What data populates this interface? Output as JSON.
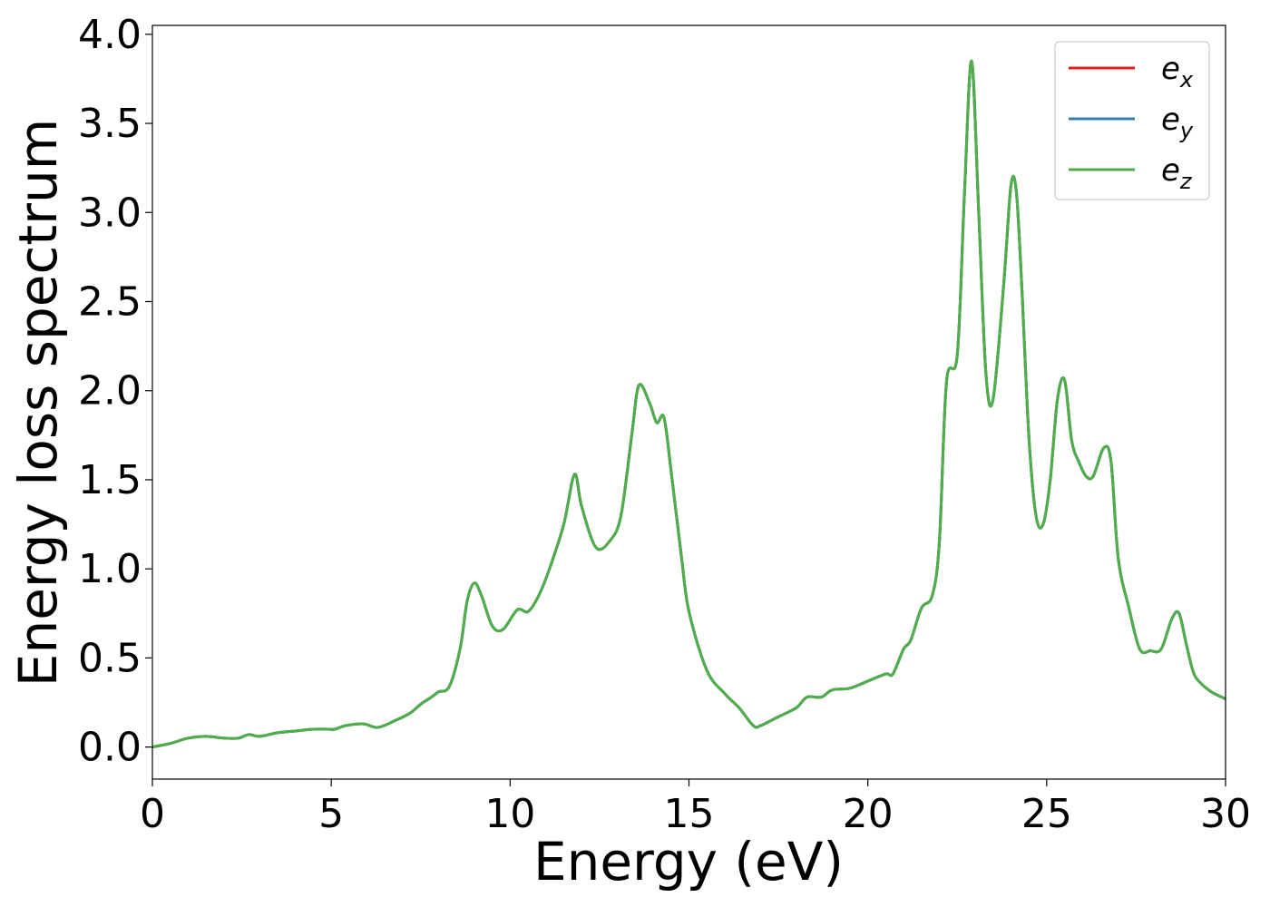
{
  "chart_data": {
    "type": "line",
    "title": "",
    "xlabel": "Energy (eV)",
    "ylabel": "Energy loss spectrum",
    "xlim": [
      0,
      30
    ],
    "ylim": [
      -0.18,
      4.05
    ],
    "xticks": [
      0,
      5,
      10,
      15,
      20,
      25,
      30
    ],
    "yticks": [
      0.0,
      0.5,
      1.0,
      1.5,
      2.0,
      2.5,
      3.0,
      3.5,
      4.0
    ],
    "xtick_labels": [
      "0",
      "5",
      "10",
      "15",
      "20",
      "25",
      "30"
    ],
    "ytick_labels": [
      "0.0",
      "0.5",
      "1.0",
      "1.5",
      "2.0",
      "2.5",
      "3.0",
      "3.5",
      "4.0"
    ],
    "grid": false,
    "legend_position": "top-right",
    "series": [
      {
        "name": "e_x",
        "label_base": "e",
        "label_sub": "x",
        "color": "#e41a1c"
      },
      {
        "name": "e_y",
        "label_base": "e",
        "label_sub": "y",
        "color": "#377eb8"
      },
      {
        "name": "e_z",
        "label_base": "e",
        "label_sub": "z",
        "color": "#4daf4a"
      }
    ],
    "x": [
      0.0,
      0.5,
      1.0,
      1.5,
      2.0,
      2.4,
      2.7,
      3.0,
      3.5,
      4.0,
      4.5,
      4.9,
      5.1,
      5.4,
      5.9,
      6.3,
      6.8,
      7.2,
      7.5,
      7.8,
      8.0,
      8.3,
      8.6,
      8.8,
      9.0,
      9.2,
      9.5,
      9.8,
      10.2,
      10.5,
      10.8,
      11.1,
      11.5,
      11.8,
      12.0,
      12.4,
      12.8,
      13.1,
      13.4,
      13.6,
      13.9,
      14.1,
      14.3,
      14.5,
      14.8,
      15.0,
      15.5,
      16.0,
      16.4,
      16.8,
      17.0,
      17.5,
      18.0,
      18.3,
      18.7,
      19.0,
      19.5,
      20.0,
      20.5,
      20.7,
      21.0,
      21.2,
      21.5,
      21.8,
      22.0,
      22.2,
      22.5,
      22.7,
      22.9,
      23.1,
      23.3,
      23.5,
      23.8,
      24.0,
      24.15,
      24.3,
      24.5,
      24.7,
      24.9,
      25.1,
      25.3,
      25.5,
      25.7,
      25.9,
      26.1,
      26.3,
      26.6,
      26.8,
      27.0,
      27.3,
      27.6,
      27.9,
      28.2,
      28.5,
      28.7,
      28.9,
      29.1,
      29.3,
      29.6,
      30.0
    ],
    "y": [
      0.0,
      0.02,
      0.05,
      0.06,
      0.05,
      0.05,
      0.07,
      0.06,
      0.08,
      0.09,
      0.1,
      0.1,
      0.1,
      0.12,
      0.13,
      0.11,
      0.15,
      0.19,
      0.24,
      0.28,
      0.31,
      0.34,
      0.55,
      0.82,
      0.92,
      0.85,
      0.68,
      0.66,
      0.77,
      0.76,
      0.85,
      1.0,
      1.25,
      1.53,
      1.35,
      1.12,
      1.16,
      1.3,
      1.75,
      2.03,
      1.93,
      1.82,
      1.85,
      1.55,
      1.05,
      0.76,
      0.43,
      0.3,
      0.22,
      0.12,
      0.12,
      0.17,
      0.22,
      0.28,
      0.28,
      0.32,
      0.33,
      0.37,
      0.41,
      0.41,
      0.55,
      0.6,
      0.78,
      0.85,
      1.15,
      2.05,
      2.2,
      3.1,
      3.85,
      3.0,
      2.1,
      1.95,
      2.6,
      3.15,
      3.12,
      2.6,
      1.75,
      1.3,
      1.25,
      1.5,
      1.95,
      2.06,
      1.72,
      1.6,
      1.52,
      1.52,
      1.68,
      1.6,
      1.06,
      0.78,
      0.55,
      0.54,
      0.55,
      0.72,
      0.75,
      0.58,
      0.42,
      0.36,
      0.31,
      0.27
    ]
  }
}
